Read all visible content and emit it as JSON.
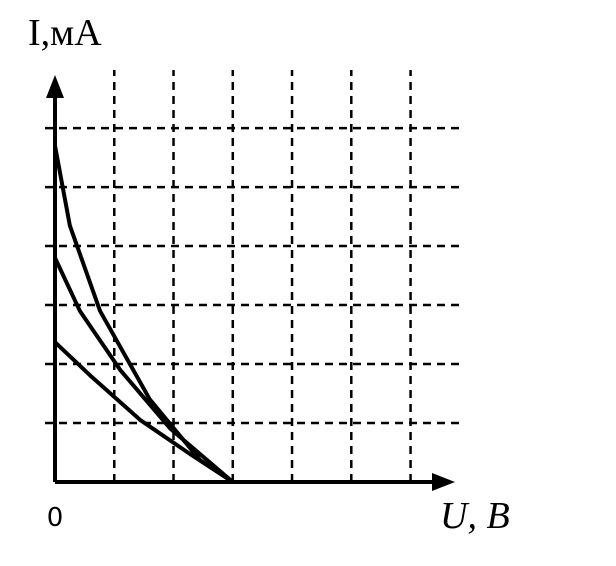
{
  "chart_data": {
    "type": "line",
    "ylabel": "I,мА",
    "xlabel": "U, B",
    "xlim": [
      0,
      6.75
    ],
    "ylim": [
      0,
      6.9
    ],
    "xticks": [
      0
    ],
    "xgrid": [
      1,
      2,
      3,
      4,
      5,
      6
    ],
    "ygrid": [
      1,
      2,
      3,
      4,
      5,
      6
    ],
    "grid": true,
    "series": [
      {
        "color": "#000000",
        "x": [
          0,
          0.25,
          0.76,
          1.6,
          2.45,
          3.0
        ],
        "values": [
          5.7,
          4.35,
          2.9,
          1.4,
          0.37,
          0
        ]
      },
      {
        "color": "#000000",
        "x": [
          0,
          0.42,
          1.1,
          1.95,
          3.0
        ],
        "values": [
          3.8,
          2.9,
          1.9,
          0.9,
          0
        ]
      },
      {
        "color": "#000000",
        "x": [
          0,
          0.6,
          1.44,
          2.3,
          3.0
        ],
        "values": [
          2.37,
          1.8,
          1.05,
          0.46,
          0
        ]
      }
    ]
  }
}
